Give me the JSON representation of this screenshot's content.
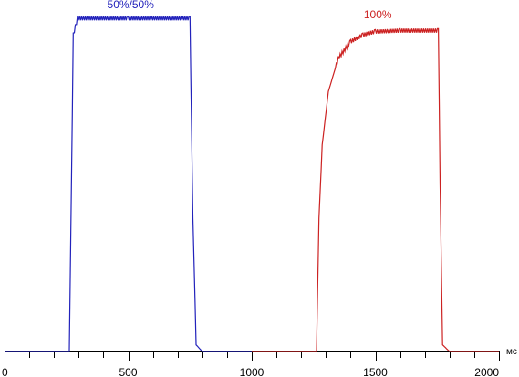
{
  "chart_data": {
    "type": "line",
    "xlim": [
      0,
      2000
    ],
    "ylim": [
      0,
      100
    ],
    "x_unit": "мс",
    "x_ticks": [
      0,
      500,
      1000,
      1500,
      2000
    ],
    "grid": false,
    "series": [
      {
        "name": "50%/50%",
        "color": "#2222bb",
        "points": [
          [
            0,
            0
          ],
          [
            250,
            0
          ],
          [
            262,
            0
          ],
          [
            278,
            95
          ],
          [
            295,
            100
          ],
          [
            500,
            100
          ],
          [
            730,
            100
          ],
          [
            750,
            100
          ],
          [
            762,
            40
          ],
          [
            775,
            2
          ],
          [
            800,
            0
          ],
          [
            1000,
            0
          ]
        ]
      },
      {
        "name": "100%",
        "color": "#cc2222",
        "points": [
          [
            1000,
            0
          ],
          [
            1250,
            0
          ],
          [
            1262,
            0
          ],
          [
            1272,
            40
          ],
          [
            1285,
            62
          ],
          [
            1310,
            78
          ],
          [
            1350,
            88
          ],
          [
            1400,
            93
          ],
          [
            1450,
            95
          ],
          [
            1500,
            96
          ],
          [
            1600,
            96.3
          ],
          [
            1755,
            96.3
          ],
          [
            1762,
            50
          ],
          [
            1772,
            2
          ],
          [
            1800,
            0
          ],
          [
            2000,
            0
          ]
        ]
      }
    ],
    "annotations": [
      {
        "text": "50%/50%",
        "x": 510,
        "y": 103,
        "color": "#2222bb"
      },
      {
        "text": "100%",
        "x": 1510,
        "y": 100,
        "color": "#cc2222"
      }
    ]
  }
}
